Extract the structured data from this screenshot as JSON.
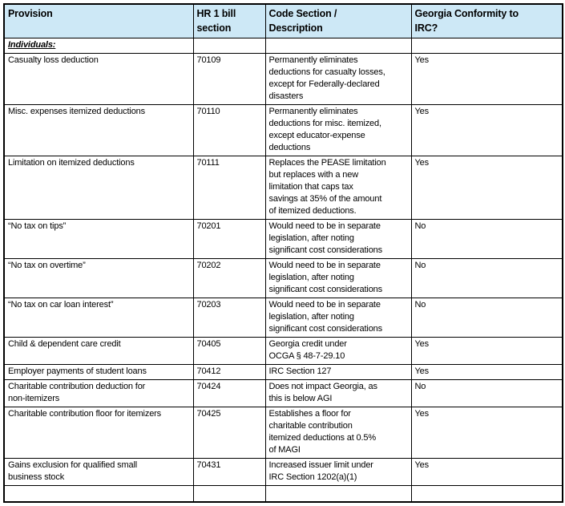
{
  "colors": {
    "header_bg": "#cde8f6",
    "border": "#000000"
  },
  "table": {
    "headers": [
      "Provision",
      "HR 1 bill\nsection",
      "Code Section /\nDescription",
      "Georgia Conformity to\nIRC?"
    ],
    "section_label": "Individuals:",
    "rows": [
      {
        "provision": "Casualty loss deduction",
        "section": "70109",
        "description": "Permanently eliminates\ndeductions for casualty losses,\nexcept for Federally-declared\ndisasters",
        "conformity": "Yes"
      },
      {
        "provision": "Misc. expenses itemized deductions",
        "section": "70110",
        "description": "Permanently eliminates\ndeductions for misc. itemized,\nexcept educator-expense\ndeductions",
        "conformity": "Yes"
      },
      {
        "provision": "Limitation on itemized deductions",
        "section": "70111",
        "description": "Replaces the PEASE limitation\nbut replaces with a new\nlimitation that caps tax\nsavings at 35% of the amount\nof itemized deductions.",
        "conformity": "Yes"
      },
      {
        "provision": "“No tax on tips”",
        "section": "70201",
        "description": "Would need to be in separate\nlegislation, after noting\nsignificant cost considerations",
        "conformity": "No"
      },
      {
        "provision": "“No tax on overtime”",
        "section": "70202",
        "description": "Would need to be in separate\nlegislation, after noting\nsignificant cost considerations",
        "conformity": "No"
      },
      {
        "provision": "“No tax on car loan interest”",
        "section": "70203",
        "description": "Would need to be in separate\nlegislation, after noting\nsignificant cost considerations",
        "conformity": "No"
      },
      {
        "provision": "Child & dependent care credit",
        "section": "70405",
        "description": "Georgia credit under\nOCGA § 48-7-29.10",
        "conformity": "Yes"
      },
      {
        "provision": "Employer payments of student loans",
        "section": "70412",
        "description": "IRC Section 127",
        "conformity": "Yes"
      },
      {
        "provision": "Charitable contribution deduction for\nnon-itemizers",
        "section": "70424",
        "description": "Does not impact Georgia, as\nthis is below AGI",
        "conformity": "No"
      },
      {
        "provision": "Charitable contribution floor for itemizers",
        "section": "70425",
        "description": "Establishes a floor for\ncharitable contribution\nitemized deductions at 0.5%\nof MAGI",
        "conformity": "Yes"
      },
      {
        "provision": "Gains exclusion for qualified small\nbusiness stock",
        "section": "70431",
        "description": "Increased issuer limit under\nIRC Section 1202(a)(1)",
        "conformity": "Yes"
      },
      {
        "provision": "",
        "section": "",
        "description": "",
        "conformity": ""
      }
    ]
  }
}
